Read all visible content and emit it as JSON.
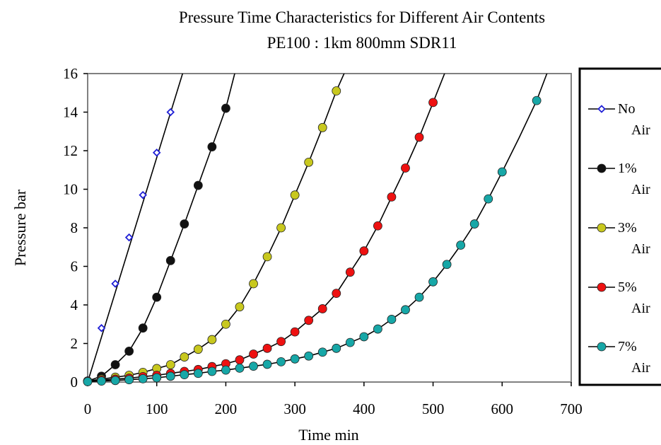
{
  "chart_data": {
    "type": "line",
    "title": "Pressure Time Characteristics for Different Air Contents",
    "subtitle": "PE100 : 1km 800mm SDR11",
    "xlabel": "Time min",
    "ylabel": "Pressure bar",
    "xlim": [
      0,
      700
    ],
    "ylim": [
      0,
      16
    ],
    "x_ticks": [
      "0",
      "100",
      "200",
      "300",
      "400",
      "500",
      "600",
      "700"
    ],
    "y_ticks": [
      "0",
      "2",
      "4",
      "6",
      "8",
      "10",
      "12",
      "14",
      "16"
    ],
    "grid": false,
    "legend_position": "right",
    "series": [
      {
        "legend_line1": "No",
        "legend_line2": "Air",
        "color": "#1f1fd6",
        "marker": "open-diamond",
        "x": [
          0,
          20,
          40,
          60,
          80,
          100,
          120
        ],
        "y": [
          0.1,
          2.8,
          5.1,
          7.5,
          9.7,
          11.9,
          14.0
        ],
        "curve_x": [
          0,
          140
        ],
        "curve_y": [
          0,
          16.3
        ]
      },
      {
        "legend_line1": "1%",
        "legend_line2": "Air",
        "color": "#111111",
        "marker": "dot",
        "x": [
          0,
          20,
          40,
          60,
          80,
          100,
          120,
          140,
          160,
          180,
          200
        ],
        "y": [
          0.05,
          0.3,
          0.9,
          1.6,
          2.8,
          4.4,
          6.3,
          8.2,
          10.2,
          12.2,
          14.2
        ],
        "curve_x": [
          0,
          20,
          40,
          60,
          80,
          100,
          120,
          140,
          160,
          180,
          200,
          215
        ],
        "curve_y": [
          0.05,
          0.3,
          0.9,
          1.6,
          2.8,
          4.4,
          6.3,
          8.2,
          10.2,
          12.2,
          14.2,
          16.3
        ]
      },
      {
        "legend_line1": "3%",
        "legend_line2": "Air",
        "color": "#c8c81e",
        "marker": "dot",
        "x": [
          0,
          20,
          40,
          60,
          80,
          100,
          120,
          140,
          160,
          180,
          200,
          220,
          240,
          260,
          280,
          300,
          320,
          340,
          360
        ],
        "y": [
          0.05,
          0.15,
          0.25,
          0.35,
          0.5,
          0.7,
          0.9,
          1.3,
          1.7,
          2.2,
          3.0,
          3.9,
          5.1,
          6.5,
          8.0,
          9.7,
          11.4,
          13.2,
          15.1
        ],
        "curve_x": [
          0,
          20,
          40,
          60,
          80,
          100,
          120,
          140,
          160,
          180,
          200,
          220,
          240,
          260,
          280,
          300,
          320,
          340,
          360,
          375
        ],
        "curve_y": [
          0.05,
          0.15,
          0.25,
          0.35,
          0.5,
          0.7,
          0.9,
          1.3,
          1.7,
          2.2,
          3.0,
          3.9,
          5.1,
          6.5,
          8.0,
          9.7,
          11.4,
          13.2,
          15.1,
          16.3
        ]
      },
      {
        "legend_line1": "5%",
        "legend_line2": "Air",
        "color": "#ee1111",
        "marker": "dot",
        "x": [
          0,
          20,
          40,
          60,
          80,
          100,
          120,
          140,
          160,
          180,
          200,
          220,
          240,
          260,
          280,
          300,
          320,
          340,
          360,
          380,
          400,
          420,
          440,
          460,
          480,
          500
        ],
        "y": [
          0.05,
          0.1,
          0.15,
          0.2,
          0.28,
          0.35,
          0.45,
          0.55,
          0.65,
          0.8,
          0.95,
          1.15,
          1.45,
          1.75,
          2.1,
          2.6,
          3.2,
          3.8,
          4.6,
          5.7,
          6.8,
          8.1,
          9.6,
          11.1,
          12.7,
          14.5
        ],
        "curve_x": [
          0,
          20,
          40,
          60,
          80,
          100,
          120,
          140,
          160,
          180,
          200,
          220,
          240,
          260,
          280,
          300,
          320,
          340,
          360,
          380,
          400,
          420,
          440,
          460,
          480,
          500,
          520
        ],
        "curve_y": [
          0.05,
          0.1,
          0.15,
          0.2,
          0.28,
          0.35,
          0.45,
          0.55,
          0.65,
          0.8,
          0.95,
          1.15,
          1.45,
          1.75,
          2.1,
          2.6,
          3.2,
          3.8,
          4.6,
          5.7,
          6.8,
          8.1,
          9.6,
          11.1,
          12.7,
          14.5,
          16.3
        ]
      },
      {
        "legend_line1": "7%",
        "legend_line2": "Air",
        "color": "#17a7a7",
        "marker": "dot",
        "x": [
          0,
          20,
          40,
          60,
          80,
          100,
          120,
          140,
          160,
          180,
          200,
          220,
          240,
          260,
          280,
          300,
          320,
          340,
          360,
          380,
          400,
          420,
          440,
          460,
          480,
          500,
          520,
          540,
          560,
          580,
          600,
          650
        ],
        "y": [
          0.02,
          0.05,
          0.08,
          0.12,
          0.17,
          0.22,
          0.3,
          0.38,
          0.45,
          0.55,
          0.62,
          0.72,
          0.82,
          0.92,
          1.05,
          1.2,
          1.35,
          1.55,
          1.75,
          2.05,
          2.35,
          2.75,
          3.25,
          3.75,
          4.4,
          5.2,
          6.1,
          7.1,
          8.2,
          9.5,
          10.9,
          14.6
        ],
        "curve_x": [
          0,
          20,
          40,
          60,
          80,
          100,
          120,
          140,
          160,
          180,
          200,
          220,
          240,
          260,
          280,
          300,
          320,
          340,
          360,
          380,
          400,
          420,
          440,
          460,
          480,
          500,
          520,
          540,
          560,
          580,
          600,
          625,
          650,
          668
        ],
        "curve_y": [
          0.02,
          0.05,
          0.08,
          0.12,
          0.17,
          0.22,
          0.3,
          0.38,
          0.45,
          0.55,
          0.62,
          0.72,
          0.82,
          0.92,
          1.05,
          1.2,
          1.35,
          1.55,
          1.75,
          2.05,
          2.35,
          2.75,
          3.25,
          3.75,
          4.4,
          5.2,
          6.1,
          7.1,
          8.2,
          9.5,
          10.9,
          12.7,
          14.6,
          16.3
        ]
      }
    ]
  }
}
